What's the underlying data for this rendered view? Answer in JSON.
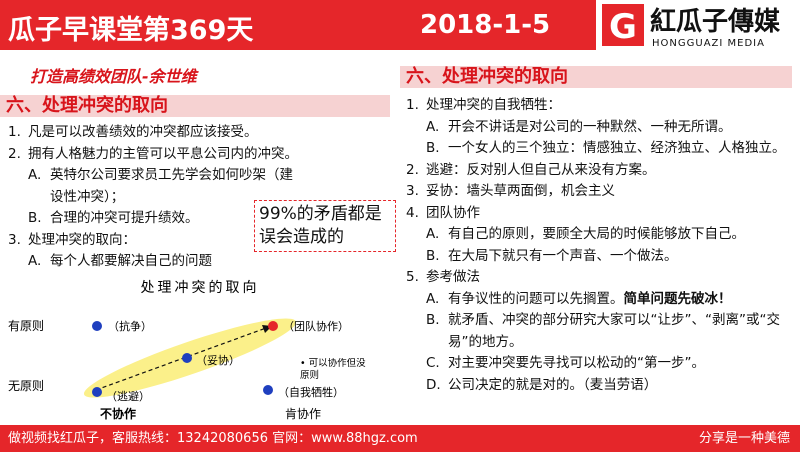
{
  "header": {
    "title": "瓜子早课堂第369天",
    "date": "2018-1-5",
    "logo_text": "紅瓜子傳媒",
    "logo_sub": "HONGGUAZI MEDIA"
  },
  "left": {
    "subtitle": "打造高绩效团队-余世维",
    "heading": "六、处理冲突的取向",
    "items": [
      {
        "marker": "1.",
        "text": "凡是可以改善绩效的冲突都应该接受。",
        "level": 1
      },
      {
        "marker": "2.",
        "text": "拥有人格魅力的主管可以平息公司内的冲突。",
        "level": 1
      },
      {
        "marker": "A.",
        "text": "英特尔公司要求员工先学会如何吵架（建设性冲突）；",
        "level": 2
      },
      {
        "marker": "B.",
        "text": "合理的冲突可提升绩效。",
        "level": 2
      },
      {
        "marker": "3.",
        "text": "处理冲突的取向：",
        "level": 1
      },
      {
        "marker": "A.",
        "text": "每个人都要解决自己的问题",
        "level": 2
      }
    ],
    "callout": "99%的矛盾都是误会造成的",
    "diagram": {
      "title": "处理冲突的取向",
      "y_high": "有原则",
      "y_low": "无原则",
      "x_low": "不协作",
      "x_high": "肯协作",
      "points": {
        "compete": "（抗争）",
        "team": "（团队协作）",
        "compromise": "（妥协）",
        "avoid": "（逃避）",
        "sacrifice": "（自我牺牲）"
      },
      "note": "• 可以协作但没原则"
    }
  },
  "right": {
    "heading": "六、处理冲突的取向",
    "items": [
      {
        "marker": "1.",
        "text": "处理冲突的自我牺牲：",
        "level": 1
      },
      {
        "marker": "A.",
        "text": "开会不讲话是对公司的一种默然、一种无所谓。",
        "level": 2
      },
      {
        "marker": "B.",
        "text": "一个女人的三个独立：情感独立、经济独立、人格独立。",
        "level": 2
      },
      {
        "marker": "2.",
        "text": "逃避：反对别人但自己从来没有方案。",
        "level": 1
      },
      {
        "marker": "3.",
        "text": "妥协：墙头草两面倒，机会主义",
        "level": 1
      },
      {
        "marker": "4.",
        "text": "团队协作",
        "level": 1
      },
      {
        "marker": "A.",
        "text": "有自己的原则，要顾全大局的时候能够放下自己。",
        "level": 2
      },
      {
        "marker": "B.",
        "text": "在大局下就只有一个声音、一个做法。",
        "level": 2
      },
      {
        "marker": "5.",
        "text": "参考做法",
        "level": 1
      },
      {
        "marker": "A.",
        "text": "有争议性的问题可以先搁置。",
        "bold": "简单问题先破冰！",
        "level": 2
      },
      {
        "marker": "B.",
        "text": "就矛盾、冲突的部分研究大家可以“让步”、“剥离”或“交易”的地方。",
        "level": 2
      },
      {
        "marker": "C.",
        "text": "对主要冲突要先寻找可以松动的“第一步”。",
        "level": 2
      },
      {
        "marker": "D.",
        "text": "公司决定的就是对的。（麦当劳语）",
        "level": 2
      }
    ]
  },
  "footer": {
    "contact": "做视频找红瓜子，客服热线：13242080656  官网：www.88hgz.com",
    "motto": "分享是一种美德"
  }
}
